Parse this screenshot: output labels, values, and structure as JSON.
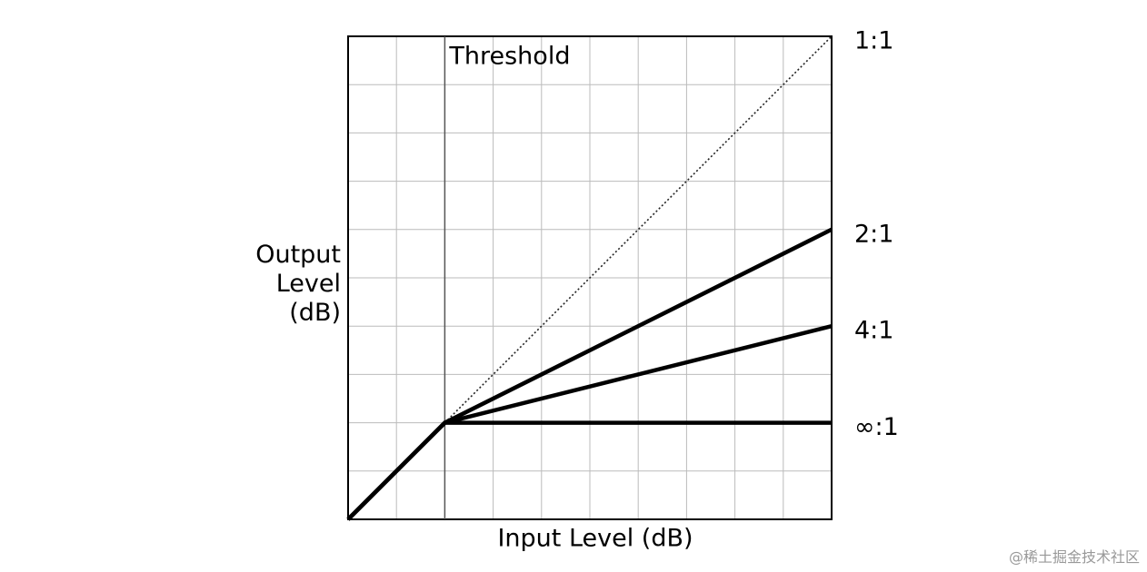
{
  "chart_data": {
    "type": "line",
    "xlabel": "Input Level (dB)",
    "ylabel": "Output Level (dB)",
    "x": [
      0,
      2,
      10
    ],
    "series": [
      {
        "name": "1:1",
        "color": "#222222",
        "style": "dotted",
        "values": [
          null,
          2,
          10
        ]
      },
      {
        "name": "2:1",
        "color": "#000000",
        "style": "solid",
        "values": [
          0,
          2,
          6
        ]
      },
      {
        "name": "4:1",
        "color": "#000000",
        "style": "solid",
        "values": [
          0,
          2,
          4
        ]
      },
      {
        "name": "∞:1",
        "color": "#000000",
        "style": "solid",
        "values": [
          0,
          2,
          2
        ]
      }
    ],
    "threshold": {
      "x": 2,
      "label": "Threshold"
    },
    "xlim": [
      0,
      10
    ],
    "ylim": [
      0,
      10
    ],
    "xticks": [
      0,
      1,
      2,
      3,
      4,
      5,
      6,
      7,
      8,
      9,
      10
    ],
    "yticks": [
      0,
      1,
      2,
      3,
      4,
      5,
      6,
      7,
      8,
      9,
      10
    ],
    "grid": true
  },
  "watermark": "@稀土掘金技术社区"
}
